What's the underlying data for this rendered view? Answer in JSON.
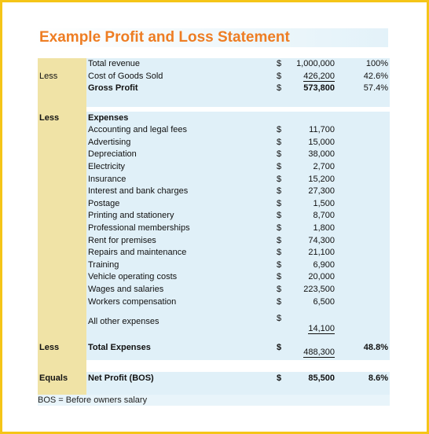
{
  "title": "Example Profit and Loss Statement",
  "rows": [
    {
      "label": "",
      "item": "Total revenue",
      "cur": "$",
      "amount": "1,000,000",
      "pct": "100%"
    },
    {
      "label": "Less",
      "item": "Cost of Goods Sold",
      "cur": "$",
      "amount": "426,200",
      "pct": "42.6%"
    },
    {
      "label": "",
      "item": "Gross Profit",
      "cur": "$",
      "amount": "573,800",
      "pct": "57.4%"
    }
  ],
  "expenses": {
    "label": "Less",
    "heading": "Expenses",
    "items": [
      {
        "item": "Accounting and legal fees",
        "cur": "$",
        "amount": "11,700"
      },
      {
        "item": "Advertising",
        "cur": "$",
        "amount": "15,000"
      },
      {
        "item": "Depreciation",
        "cur": "$",
        "amount": "38,000"
      },
      {
        "item": "Electricity",
        "cur": "$",
        "amount": "2,700"
      },
      {
        "item": "Insurance",
        "cur": "$",
        "amount": "15,200"
      },
      {
        "item": "Interest and bank charges",
        "cur": "$",
        "amount": "27,300"
      },
      {
        "item": "Postage",
        "cur": "$",
        "amount": "1,500"
      },
      {
        "item": "Printing and stationery",
        "cur": "$",
        "amount": "8,700"
      },
      {
        "item": "Professional memberships",
        "cur": "$",
        "amount": "1,800"
      },
      {
        "item": "Rent for premises",
        "cur": "$",
        "amount": "74,300"
      },
      {
        "item": "Repairs and maintenance",
        "cur": "$",
        "amount": "21,100"
      },
      {
        "item": "Training",
        "cur": "$",
        "amount": "6,900"
      },
      {
        "item": "Vehicle operating costs",
        "cur": "$",
        "amount": "20,000"
      },
      {
        "item": "Wages and salaries",
        "cur": "$",
        "amount": "223,500"
      },
      {
        "item": "Workers compensation",
        "cur": "$",
        "amount": "6,500"
      }
    ],
    "other": {
      "item": "All other expenses",
      "cur": "$",
      "amount": "14,100"
    }
  },
  "total_expenses": {
    "label": "Less",
    "item": "Total Expenses",
    "cur": "$",
    "amount": "488,300",
    "pct": "48.8%"
  },
  "net_profit": {
    "label": "Equals",
    "item": "Net Profit (BOS)",
    "cur": "$",
    "amount": "85,500",
    "pct": "8.6%"
  },
  "footnote": "BOS = Before owners salary"
}
